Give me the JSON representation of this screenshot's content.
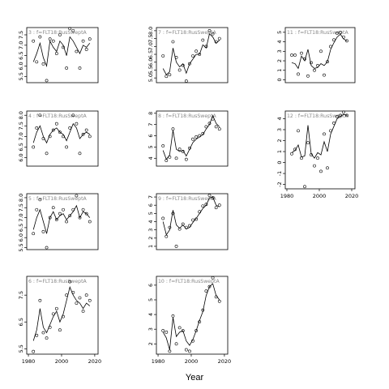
{
  "chart_data": [
    {
      "panel_label": "3 :  f=FLT18:RusSweptA",
      "type": "scatter",
      "ylim": [
        5.2,
        7.85
      ],
      "yticks": [
        5.5,
        6.0,
        6.5,
        7.0,
        7.5
      ],
      "x": [
        1983,
        1985,
        1987,
        1989,
        1991,
        1993,
        1995,
        1997,
        1999,
        2001,
        2003,
        2005,
        2007,
        2009,
        2011,
        2013,
        2015,
        2017
      ],
      "points": [
        7.2,
        6.2,
        7.4,
        6.1,
        5.3,
        7.3,
        7.2,
        6.6,
        7.5,
        6.9,
        5.9,
        7.8,
        7.7,
        6.7,
        5.9,
        7.2,
        6.8,
        7.3
      ],
      "fit": [
        6.2,
        6.6,
        7.1,
        6.4,
        6.0,
        7.2,
        6.9,
        6.7,
        7.2,
        7.0,
        6.5,
        7.4,
        7.2,
        6.9,
        6.6,
        7.0,
        6.9,
        7.1
      ]
    },
    {
      "panel_label": "7 :  f=FLT18:RusSweptA",
      "type": "scatter",
      "ylim": [
        4.7,
        8.2
      ],
      "yticks": [
        5.0,
        5.5,
        6.0,
        6.5,
        7.0,
        7.5,
        8.0
      ],
      "x": [
        1983,
        1985,
        1987,
        1989,
        1991,
        1993,
        1995,
        1997,
        1999,
        2001,
        2003,
        2005,
        2007,
        2009,
        2011,
        2013,
        2015,
        2017
      ],
      "points": [
        6.4,
        5.1,
        5.2,
        7.3,
        6.3,
        5.5,
        5.8,
        4.8,
        5.9,
        6.4,
        6.7,
        6.5,
        7.4,
        7.0,
        8.0,
        7.8,
        7.3,
        7.5
      ],
      "fit": [
        5.6,
        5.2,
        5.4,
        6.9,
        6.0,
        5.7,
        5.9,
        5.3,
        5.9,
        6.2,
        6.5,
        6.5,
        7.1,
        6.9,
        7.8,
        7.6,
        7.2,
        7.4
      ]
    },
    {
      "panel_label": "11 :  f=FLT18:RusSweptA",
      "type": "scatter",
      "ylim": [
        -0.3,
        5.5
      ],
      "yticks": [
        0,
        1,
        2,
        3,
        4,
        5
      ],
      "x": [
        1983,
        1985,
        1987,
        1989,
        1991,
        1993,
        1995,
        1997,
        1999,
        2001,
        2003,
        2005,
        2007,
        2009,
        2011,
        2013,
        2015,
        2017
      ],
      "points": [
        2.6,
        2.6,
        0.6,
        2.8,
        2.2,
        0.4,
        1.8,
        1.0,
        1.5,
        3.0,
        0.5,
        1.9,
        3.5,
        4.2,
        4.9,
        5.0,
        4.5,
        4.1
      ],
      "fit": [
        1.8,
        1.7,
        1.2,
        2.5,
        2.0,
        3.2,
        1.5,
        1.2,
        1.3,
        1.7,
        1.5,
        1.9,
        3.2,
        3.9,
        4.5,
        4.8,
        4.3,
        4.1
      ]
    },
    {
      "panel_label": "4 :  f=FLT18:RusSweptA",
      "type": "scatter",
      "ylim": [
        5.6,
        8.2
      ],
      "yticks": [
        6.0,
        6.5,
        7.0,
        7.5,
        8.0
      ],
      "x": [
        1983,
        1985,
        1987,
        1989,
        1991,
        1993,
        1995,
        1997,
        1999,
        2001,
        2003,
        2005,
        2007,
        2009,
        2011,
        2013,
        2015,
        2017
      ],
      "points": [
        6.5,
        7.4,
        8.0,
        6.9,
        6.2,
        7.0,
        7.3,
        7.6,
        7.2,
        7.0,
        6.5,
        7.4,
        8.0,
        7.6,
        6.2,
        7.1,
        7.3,
        7.0
      ],
      "fit": [
        6.7,
        7.2,
        7.5,
        7.0,
        6.7,
        7.1,
        7.3,
        7.4,
        7.2,
        7.1,
        6.8,
        7.2,
        7.6,
        7.4,
        6.9,
        7.1,
        7.2,
        7.1
      ]
    },
    {
      "panel_label": "8 :  f=FLT18:RusSweptA",
      "type": "scatter",
      "ylim": [
        3.3,
        8.2
      ],
      "yticks": [
        4,
        5,
        6,
        7,
        8
      ],
      "x": [
        1983,
        1985,
        1987,
        1989,
        1991,
        1993,
        1995,
        1997,
        1999,
        2001,
        2003,
        2005,
        2007,
        2009,
        2011,
        2013,
        2015,
        2017
      ],
      "points": [
        5.1,
        3.8,
        4.1,
        6.6,
        4.0,
        4.8,
        4.6,
        3.9,
        4.9,
        5.7,
        5.9,
        6.0,
        6.2,
        6.8,
        7.1,
        7.5,
        6.8,
        6.6
      ],
      "fit": [
        4.7,
        3.9,
        4.3,
        6.5,
        4.8,
        4.6,
        4.7,
        4.2,
        4.8,
        5.4,
        5.7,
        5.9,
        6.1,
        6.6,
        7.0,
        7.8,
        7.1,
        6.8
      ]
    },
    {
      "panel_label": "12 :  f=FLT18:RusSweptA",
      "type": "scatter",
      "ylim": [
        -2.4,
        4.7
      ],
      "yticks": [
        -2,
        -1,
        0,
        1,
        2,
        3,
        4
      ],
      "x": [
        1983,
        1985,
        1987,
        1989,
        1991,
        1993,
        1995,
        1997,
        1999,
        2001,
        2003,
        2005,
        2007,
        2009,
        2011,
        2013,
        2015,
        2017
      ],
      "points": [
        0.8,
        1.2,
        2.9,
        0.4,
        -2.2,
        1.8,
        0.7,
        -0.3,
        0.4,
        -0.8,
        2.6,
        -0.5,
        2.9,
        3.6,
        4.2,
        4.3,
        4.6,
        4.3
      ],
      "fit": [
        0.9,
        1.1,
        1.6,
        0.5,
        0.6,
        3.4,
        0.8,
        0.4,
        0.9,
        0.7,
        1.9,
        1.0,
        2.6,
        3.3,
        4.0,
        4.2,
        4.4,
        4.3
      ]
    },
    {
      "panel_label": "5 :  f=FLT18:RusSweptA",
      "type": "scatter",
      "ylim": [
        5.4,
        8.2
      ],
      "yticks": [
        5.5,
        6.0,
        6.5,
        7.0,
        7.5,
        8.0
      ],
      "x": [
        1983,
        1985,
        1987,
        1989,
        1991,
        1993,
        1995,
        1997,
        1999,
        2001,
        2003,
        2005,
        2007,
        2009,
        2011,
        2013,
        2015,
        2017
      ],
      "points": [
        6.2,
        7.4,
        7.9,
        6.3,
        5.5,
        7.0,
        7.5,
        6.9,
        7.2,
        7.4,
        6.8,
        7.1,
        7.4,
        8.1,
        7.0,
        7.4,
        7.2,
        6.8
      ],
      "fit": [
        6.4,
        7.0,
        7.4,
        6.8,
        6.2,
        7.0,
        7.3,
        6.9,
        7.1,
        7.2,
        6.9,
        7.1,
        7.3,
        7.6,
        7.0,
        7.3,
        7.2,
        7.0
      ]
    },
    {
      "panel_label": "9 :  f=FLT18:RusSweptA",
      "type": "scatter",
      "ylim": [
        0.6,
        7.4
      ],
      "yticks": [
        1,
        2,
        3,
        4,
        5,
        6,
        7
      ],
      "x": [
        1983,
        1985,
        1987,
        1989,
        1991,
        1993,
        1995,
        1997,
        1999,
        2001,
        2003,
        2005,
        2007,
        2009,
        2011,
        2013,
        2015,
        2017
      ],
      "points": [
        4.4,
        2.2,
        3.3,
        5.0,
        1.0,
        3.1,
        3.7,
        3.3,
        3.5,
        4.2,
        4.3,
        5.2,
        5.9,
        6.1,
        7.2,
        6.9,
        5.7,
        6.0
      ],
      "fit": [
        4.0,
        2.4,
        3.0,
        5.4,
        3.6,
        3.2,
        3.6,
        3.1,
        3.3,
        3.9,
        4.4,
        5.0,
        5.6,
        6.0,
        6.9,
        7.0,
        6.0,
        5.8
      ]
    },
    {
      "panel_label": "6 :  f=FLT18:RusSweptA",
      "type": "scatter",
      "ylim": [
        5.3,
        8.2
      ],
      "yticks": [
        5.5,
        6.5,
        7.5
      ],
      "x": [
        1983,
        1985,
        1987,
        1989,
        1991,
        1993,
        1995,
        1997,
        1999,
        2001,
        2003,
        2005,
        2007,
        2009,
        2011,
        2013,
        2015,
        2017
      ],
      "points": [
        5.4,
        6.0,
        7.3,
        6.1,
        5.9,
        6.3,
        6.8,
        7.0,
        6.2,
        6.7,
        7.5,
        8.0,
        7.6,
        7.2,
        7.4,
        6.9,
        7.5,
        7.3
      ],
      "fit": [
        5.8,
        6.2,
        7.0,
        6.3,
        6.1,
        6.4,
        6.7,
        6.9,
        6.5,
        6.8,
        7.3,
        7.8,
        7.5,
        7.3,
        7.2,
        7.0,
        7.2,
        7.1
      ]
    },
    {
      "panel_label": "10 :  f=FLT18:RusSweptA",
      "type": "scatter",
      "ylim": [
        1.3,
        6.6
      ],
      "yticks": [
        2,
        3,
        4,
        5,
        6
      ],
      "x": [
        1983,
        1985,
        1987,
        1989,
        1991,
        1993,
        1995,
        1997,
        1999,
        2001,
        2003,
        2005,
        2007,
        2009,
        2011,
        2013,
        2015,
        2017
      ],
      "points": [
        2.9,
        2.8,
        1.5,
        3.9,
        2.0,
        3.1,
        2.9,
        1.6,
        1.5,
        2.2,
        2.9,
        3.5,
        4.3,
        5.6,
        5.9,
        6.5,
        5.2,
        4.9
      ],
      "fit": [
        2.8,
        2.4,
        1.6,
        3.8,
        2.5,
        2.8,
        2.9,
        2.2,
        1.9,
        2.3,
        2.9,
        3.6,
        4.2,
        5.3,
        5.9,
        6.1,
        5.3,
        5.0
      ]
    }
  ],
  "shared_x_axis": {
    "label": "Year",
    "ticks": [
      1980,
      2000,
      2020
    ],
    "xlim": [
      1979,
      2022
    ]
  },
  "line_color": "#000000",
  "label_color": "#888888"
}
